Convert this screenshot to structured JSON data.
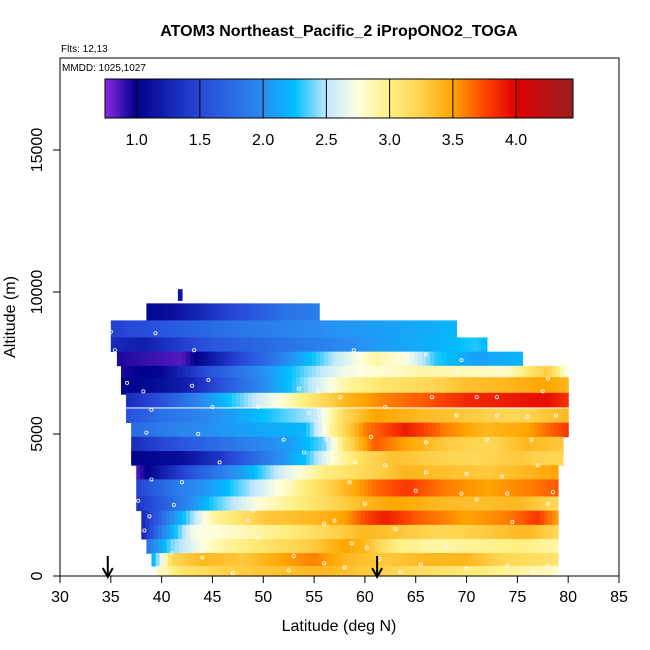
{
  "chart_data": {
    "type": "heatmap",
    "title": "ATOM3 Northeast_Pacific_2 iPropONO2_TOGA",
    "notes": [
      "Flts: 12,13",
      "MMDD: 1025,1027"
    ],
    "xlabel": "Latitude (deg N)",
    "ylabel": "Altitude (m)",
    "xlim": [
      30,
      85
    ],
    "ylim": [
      0,
      17500
    ],
    "x_ticks": [
      30,
      35,
      40,
      45,
      50,
      55,
      60,
      65,
      70,
      75,
      80,
      85
    ],
    "y_ticks": [
      0,
      5000,
      10000,
      15000
    ],
    "colorbar": {
      "range": [
        0.75,
        4.45
      ],
      "ticks": [
        1.0,
        1.5,
        2.0,
        2.5,
        3.0,
        3.5,
        4.0
      ],
      "tick_labels": [
        "1.0",
        "1.5",
        "2.0",
        "2.5",
        "3.0",
        "3.5",
        "4.0"
      ],
      "stops": [
        [
          0.75,
          "#8a2be2"
        ],
        [
          1.0,
          "#00008b"
        ],
        [
          1.5,
          "#2848d8"
        ],
        [
          2.0,
          "#2b8cf0"
        ],
        [
          2.25,
          "#00bfff"
        ],
        [
          2.5,
          "#bfe8ff"
        ],
        [
          2.75,
          "#ffffe0"
        ],
        [
          3.0,
          "#ffef80"
        ],
        [
          3.25,
          "#ffd24d"
        ],
        [
          3.5,
          "#ffa500"
        ],
        [
          3.75,
          "#ff4500"
        ],
        [
          4.0,
          "#e00000"
        ],
        [
          4.45,
          "#962020"
        ]
      ]
    },
    "markers": [
      {
        "type": "arrow-down",
        "x": 34.7
      },
      {
        "type": "arrow-down",
        "x": 61.2
      }
    ],
    "bands": [
      {
        "alt": 9900,
        "half": 200,
        "stops": [
          [
            41.6,
            1.1
          ],
          [
            42.0,
            1.2
          ]
        ]
      },
      {
        "alt": 9300,
        "half": 300,
        "stops": [
          [
            38.5,
            1.05
          ],
          [
            41,
            1.1
          ],
          [
            44,
            1.3
          ],
          [
            48,
            1.55
          ],
          [
            52,
            1.8
          ],
          [
            55.5,
            1.9
          ]
        ]
      },
      {
        "alt": 8700,
        "half": 300,
        "stops": [
          [
            35,
            1.45
          ],
          [
            40,
            1.6
          ],
          [
            48,
            1.85
          ],
          [
            58,
            2.05
          ],
          [
            66,
            2.15
          ],
          [
            69,
            2.2
          ]
        ]
      },
      {
        "alt": 8150,
        "half": 250,
        "stops": [
          [
            35,
            1.3
          ],
          [
            38,
            1.2
          ],
          [
            45,
            1.6
          ],
          [
            55,
            1.9
          ],
          [
            62,
            2.1
          ],
          [
            68,
            2.2
          ],
          [
            71,
            2.3
          ],
          [
            72,
            2.2
          ]
        ]
      },
      {
        "alt": 7650,
        "half": 250,
        "stops": [
          [
            35.6,
            0.95
          ],
          [
            42,
            0.85
          ],
          [
            46,
            1.3
          ],
          [
            52,
            1.95
          ],
          [
            57,
            2.5
          ],
          [
            61,
            2.9
          ],
          [
            64,
            2.75
          ],
          [
            67,
            2.3
          ],
          [
            71,
            2.1
          ],
          [
            75.5,
            2.2
          ]
        ]
      },
      {
        "alt": 7200,
        "half": 200,
        "stops": [
          [
            36,
            0.95
          ],
          [
            40,
            1.05
          ],
          [
            45,
            1.6
          ],
          [
            52,
            2.2
          ],
          [
            58,
            2.7
          ],
          [
            62,
            2.8
          ],
          [
            66,
            2.9
          ],
          [
            70,
            2.85
          ],
          [
            74,
            2.8
          ],
          [
            78,
            3.3
          ],
          [
            80,
            2.7
          ]
        ]
      },
      {
        "alt": 6700,
        "half": 300,
        "stops": [
          [
            36,
            1.0
          ],
          [
            40,
            1.1
          ],
          [
            43,
            1.25
          ],
          [
            48,
            1.8
          ],
          [
            53,
            2.3
          ],
          [
            58,
            2.9
          ],
          [
            62,
            3.1
          ],
          [
            66,
            3.2
          ],
          [
            70,
            3.35
          ],
          [
            74,
            3.4
          ],
          [
            78,
            3.5
          ],
          [
            80,
            3.4
          ]
        ]
      },
      {
        "alt": 6200,
        "half": 250,
        "stops": [
          [
            36.5,
            1.3
          ],
          [
            40,
            1.55
          ],
          [
            44,
            2.0
          ],
          [
            48,
            2.4
          ],
          [
            53,
            2.9
          ],
          [
            58,
            3.4
          ],
          [
            62,
            3.6
          ],
          [
            66,
            3.7
          ],
          [
            70,
            3.85
          ],
          [
            74,
            3.9
          ],
          [
            78,
            3.95
          ],
          [
            80,
            3.8
          ]
        ]
      },
      {
        "alt": 5650,
        "half": 250,
        "stops": [
          [
            36.5,
            1.55
          ],
          [
            40,
            1.8
          ],
          [
            45,
            2.0
          ],
          [
            50,
            2.25
          ],
          [
            55,
            2.5
          ],
          [
            58,
            3.2
          ],
          [
            61,
            3.5
          ],
          [
            65,
            3.4
          ],
          [
            70,
            3.3
          ],
          [
            75,
            3.2
          ],
          [
            80,
            3.4
          ]
        ]
      },
      {
        "alt": 5150,
        "half": 250,
        "stops": [
          [
            37,
            1.75
          ],
          [
            42,
            1.95
          ],
          [
            48,
            2.1
          ],
          [
            54,
            2.2
          ],
          [
            57,
            3.0
          ],
          [
            60,
            3.6
          ],
          [
            64,
            3.9
          ],
          [
            68,
            3.6
          ],
          [
            72,
            3.4
          ],
          [
            76,
            3.5
          ],
          [
            80,
            3.8
          ]
        ]
      },
      {
        "alt": 4650,
        "half": 250,
        "stops": [
          [
            37,
            1.3
          ],
          [
            42,
            1.6
          ],
          [
            48,
            1.9
          ],
          [
            53,
            2.1
          ],
          [
            56,
            2.4
          ],
          [
            58,
            3.1
          ],
          [
            61,
            3.7
          ],
          [
            64,
            3.5
          ],
          [
            68,
            3.3
          ],
          [
            72,
            3.2
          ],
          [
            76,
            3.4
          ],
          [
            79.5,
            3.3
          ]
        ]
      },
      {
        "alt": 4150,
        "half": 250,
        "stops": [
          [
            37,
            1.0
          ],
          [
            42,
            1.1
          ],
          [
            46,
            1.4
          ],
          [
            50,
            1.85
          ],
          [
            54,
            2.25
          ],
          [
            57,
            2.8
          ],
          [
            60,
            3.2
          ],
          [
            63,
            3.35
          ],
          [
            67,
            3.25
          ],
          [
            71,
            3.2
          ],
          [
            75,
            3.3
          ],
          [
            79.5,
            3.2
          ]
        ]
      },
      {
        "alt": 3650,
        "half": 250,
        "stops": [
          [
            37.5,
            0.85
          ],
          [
            40,
            1.2
          ],
          [
            44,
            1.7
          ],
          [
            48,
            2.1
          ],
          [
            52,
            2.6
          ],
          [
            56,
            3.0
          ],
          [
            60,
            3.2
          ],
          [
            64,
            3.4
          ],
          [
            68,
            3.35
          ],
          [
            72,
            3.3
          ],
          [
            76,
            3.4
          ],
          [
            79,
            3.5
          ]
        ]
      },
      {
        "alt": 3100,
        "half": 300,
        "stops": [
          [
            37.5,
            1.45
          ],
          [
            41,
            1.85
          ],
          [
            45,
            2.1
          ],
          [
            50,
            2.6
          ],
          [
            54,
            3.0
          ],
          [
            57,
            3.3
          ],
          [
            61,
            3.65
          ],
          [
            64,
            3.8
          ],
          [
            68,
            3.6
          ],
          [
            72,
            3.5
          ],
          [
            76,
            3.6
          ],
          [
            79,
            3.7
          ]
        ]
      },
      {
        "alt": 2550,
        "half": 250,
        "stops": [
          [
            37.5,
            1.35
          ],
          [
            41,
            1.75
          ],
          [
            45,
            2.3
          ],
          [
            50,
            2.8
          ],
          [
            55,
            3.1
          ],
          [
            60,
            3.4
          ],
          [
            63,
            3.5
          ],
          [
            67,
            3.4
          ],
          [
            71,
            3.35
          ],
          [
            75,
            3.4
          ],
          [
            79,
            3.2
          ]
        ]
      },
      {
        "alt": 2050,
        "half": 250,
        "stops": [
          [
            38,
            1.25
          ],
          [
            41,
            2.0
          ],
          [
            45,
            2.9
          ],
          [
            50,
            3.3
          ],
          [
            55,
            3.4
          ],
          [
            58,
            3.5
          ],
          [
            60,
            3.75
          ],
          [
            62,
            3.9
          ],
          [
            65,
            3.7
          ],
          [
            70,
            3.5
          ],
          [
            74,
            3.6
          ],
          [
            77,
            3.8
          ],
          [
            79,
            3.5
          ]
        ]
      },
      {
        "alt": 1550,
        "half": 250,
        "stops": [
          [
            38,
            1.2
          ],
          [
            40,
            1.9
          ],
          [
            43,
            2.7
          ],
          [
            48,
            2.85
          ],
          [
            52,
            3.0
          ],
          [
            56,
            3.2
          ],
          [
            60,
            3.4
          ],
          [
            64,
            3.3
          ],
          [
            68,
            3.2
          ],
          [
            72,
            3.3
          ],
          [
            76,
            3.4
          ],
          [
            79,
            3.2
          ]
        ]
      },
      {
        "alt": 1050,
        "half": 250,
        "stops": [
          [
            38.5,
            1.8
          ],
          [
            41,
            2.4
          ],
          [
            45,
            2.85
          ],
          [
            50,
            3.1
          ],
          [
            55,
            3.3
          ],
          [
            58,
            3.5
          ],
          [
            60,
            3.4
          ],
          [
            63,
            3.0
          ],
          [
            67,
            2.9
          ],
          [
            71,
            2.95
          ],
          [
            75,
            3.0
          ],
          [
            79,
            2.9
          ]
        ]
      },
      {
        "alt": 580,
        "half": 230,
        "stops": [
          [
            39,
            2.1
          ],
          [
            41,
            3.2
          ],
          [
            44,
            3.4
          ],
          [
            48,
            3.3
          ],
          [
            52,
            3.5
          ],
          [
            55,
            3.6
          ],
          [
            58,
            3.4
          ],
          [
            62,
            3.3
          ],
          [
            66,
            3.4
          ],
          [
            70,
            3.4
          ],
          [
            74,
            3.2
          ],
          [
            79,
            3.1
          ]
        ]
      },
      {
        "alt": 170,
        "half": 180,
        "stops": [
          [
            39.5,
            2.8
          ],
          [
            42,
            3.1
          ],
          [
            46,
            3.25
          ],
          [
            52,
            3.35
          ],
          [
            56,
            3.4
          ],
          [
            60,
            3.3
          ],
          [
            64,
            3.2
          ],
          [
            68,
            3.1
          ],
          [
            72,
            3.0
          ],
          [
            76,
            2.9
          ],
          [
            79,
            2.8
          ]
        ]
      }
    ],
    "points": [
      [
        35.0,
        8600
      ],
      [
        39.4,
        8550
      ],
      [
        35.4,
        7950
      ],
      [
        43.2,
        7950
      ],
      [
        58.9,
        7950
      ],
      [
        59.5,
        7800
      ],
      [
        64.0,
        7700
      ],
      [
        66.0,
        7800
      ],
      [
        69.5,
        7600
      ],
      [
        44.6,
        6900
      ],
      [
        59.6,
        7300
      ],
      [
        69.0,
        7150
      ],
      [
        76.0,
        7450
      ],
      [
        78.0,
        6950
      ],
      [
        77.5,
        6500
      ],
      [
        36.6,
        6800
      ],
      [
        38.2,
        6500
      ],
      [
        43.0,
        6700
      ],
      [
        53.5,
        6600
      ],
      [
        55.4,
        6500
      ],
      [
        56.6,
        6500
      ],
      [
        57.6,
        6300
      ],
      [
        66.6,
        6300
      ],
      [
        71.0,
        6300
      ],
      [
        73.0,
        6300
      ],
      [
        39.0,
        5850
      ],
      [
        45.0,
        5950
      ],
      [
        49.5,
        5950
      ],
      [
        54.5,
        5750
      ],
      [
        62.0,
        5950
      ],
      [
        69.0,
        5650
      ],
      [
        73.0,
        5650
      ],
      [
        76.0,
        5600
      ],
      [
        78.8,
        5650
      ],
      [
        38.5,
        5050
      ],
      [
        43.6,
        5000
      ],
      [
        52.0,
        4800
      ],
      [
        56.2,
        4800
      ],
      [
        60.6,
        4900
      ],
      [
        66.0,
        4700
      ],
      [
        72.0,
        4800
      ],
      [
        76.4,
        4800
      ],
      [
        45.7,
        4000
      ],
      [
        54.0,
        4350
      ],
      [
        59.0,
        4000
      ],
      [
        62.0,
        3900
      ],
      [
        66.0,
        3650
      ],
      [
        70.0,
        3600
      ],
      [
        73.5,
        3500
      ],
      [
        77.0,
        3900
      ],
      [
        39.0,
        3400
      ],
      [
        42.0,
        3300
      ],
      [
        52.6,
        3200
      ],
      [
        58.5,
        3300
      ],
      [
        65.0,
        3000
      ],
      [
        69.5,
        2900
      ],
      [
        74.0,
        2900
      ],
      [
        78.5,
        2950
      ],
      [
        37.7,
        2650
      ],
      [
        41.2,
        2500
      ],
      [
        49.0,
        2300
      ],
      [
        60.0,
        2550
      ],
      [
        71.0,
        2700
      ],
      [
        78.0,
        2550
      ],
      [
        38.8,
        2100
      ],
      [
        48.5,
        1950
      ],
      [
        56.0,
        1850
      ],
      [
        57.0,
        1950
      ],
      [
        63.0,
        1650
      ],
      [
        74.5,
        1900
      ],
      [
        38.3,
        1600
      ],
      [
        49.5,
        1350
      ],
      [
        58.7,
        1150
      ],
      [
        60.2,
        1000
      ],
      [
        68.0,
        1050
      ],
      [
        41.0,
        800
      ],
      [
        44.0,
        650
      ],
      [
        53.0,
        700
      ],
      [
        56.0,
        450
      ],
      [
        61.4,
        600
      ],
      [
        65.5,
        400
      ],
      [
        74.0,
        350
      ],
      [
        78.0,
        350
      ],
      [
        40.5,
        150
      ],
      [
        47.0,
        100
      ],
      [
        52.5,
        200
      ],
      [
        58.0,
        300
      ],
      [
        63.5,
        150
      ],
      [
        70.0,
        250
      ],
      [
        76.5,
        120
      ]
    ]
  }
}
